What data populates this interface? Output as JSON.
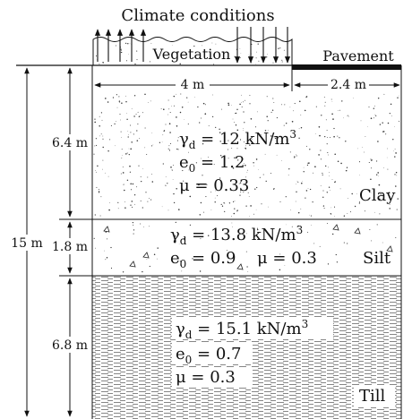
{
  "top": {
    "climate": "Climate conditions",
    "vegetation": "Vegetation",
    "pavement": "Pavement"
  },
  "widths": {
    "left": "4 m",
    "right": "2.4 m"
  },
  "depths": {
    "total": "15 m",
    "clay": "6.4 m",
    "silt": "1.8 m",
    "till": "6.8 m"
  },
  "layers": {
    "clay": {
      "name": "Clay",
      "gamma_sym": "γ",
      "gamma_sub": "d",
      "gamma_rest": " = 12 kN/m",
      "gamma_sup": "3",
      "e_sym": "e",
      "e_sub": "0",
      "e_rest": " = 1.2",
      "mu_text": "μ  = 0.33"
    },
    "silt": {
      "name": "Silt",
      "gamma_sym": "γ",
      "gamma_sub": "d",
      "gamma_rest": " = 13.8 kN/m",
      "gamma_sup": "3",
      "e_sym": "e",
      "e_sub": "0",
      "e_rest": " = 0.9",
      "mu_text": "μ  = 0.3"
    },
    "till": {
      "name": "Till",
      "gamma_sym": "γ",
      "gamma_sub": "d",
      "gamma_rest": " = 15.1 kN/m",
      "gamma_sup": "3",
      "e_sym": "e",
      "e_sub": "0",
      "e_rest": " = 0.7",
      "mu_text": "μ  = 0.3"
    }
  }
}
